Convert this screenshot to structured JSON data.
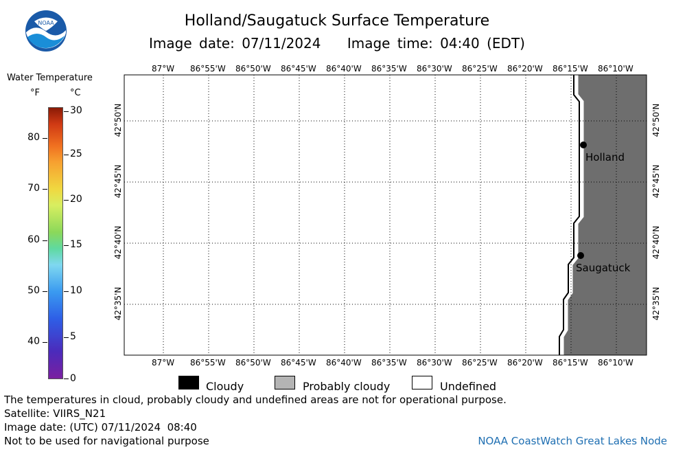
{
  "header": {
    "title": "Holland/Saugatuck Surface Temperature",
    "image_date": "Image date: 07/11/2024",
    "image_time": "Image time: 04:40 (EDT)",
    "logo_text": "NOAA"
  },
  "colorbar": {
    "title": "Water Temperature",
    "unit_f": "°F",
    "unit_c": "°C",
    "f_ticks": [
      "80",
      "70",
      "60",
      "50",
      "40"
    ],
    "c_ticks": [
      "30",
      "25",
      "20",
      "15",
      "10",
      "5",
      "0"
    ]
  },
  "map": {
    "lon_labels": [
      "87°W",
      "86°55'W",
      "86°50'W",
      "86°45'W",
      "86°40'W",
      "86°35'W",
      "86°30'W",
      "86°25'W",
      "86°20'W",
      "86°15'W",
      "86°10'W"
    ],
    "lat_labels": [
      "42°50'N",
      "42°45'N",
      "42°40'N",
      "42°35'N"
    ],
    "cities": [
      {
        "name": "Holland"
      },
      {
        "name": "Saugatuck"
      }
    ],
    "land_color": "#6e6e6e",
    "water_color": "#ffffff"
  },
  "legend": {
    "cloudy": "Cloudy",
    "probably_cloudy": "Probably cloudy",
    "undefined": "Undefined",
    "colors": {
      "cloudy": "#000000",
      "probably_cloudy": "#b4b4b4",
      "undefined": "#ffffff"
    }
  },
  "footer": {
    "disclaimer": "The temperatures in cloud, probably cloudy and undefined areas are not for operational purpose.",
    "satellite": "Satellite: VIIRS_N21",
    "utc_date": "Image date: (UTC) 07/11/2024  08:40",
    "nav_warning": "Not to be used for navigational purpose",
    "node": "NOAA CoastWatch Great Lakes Node"
  }
}
